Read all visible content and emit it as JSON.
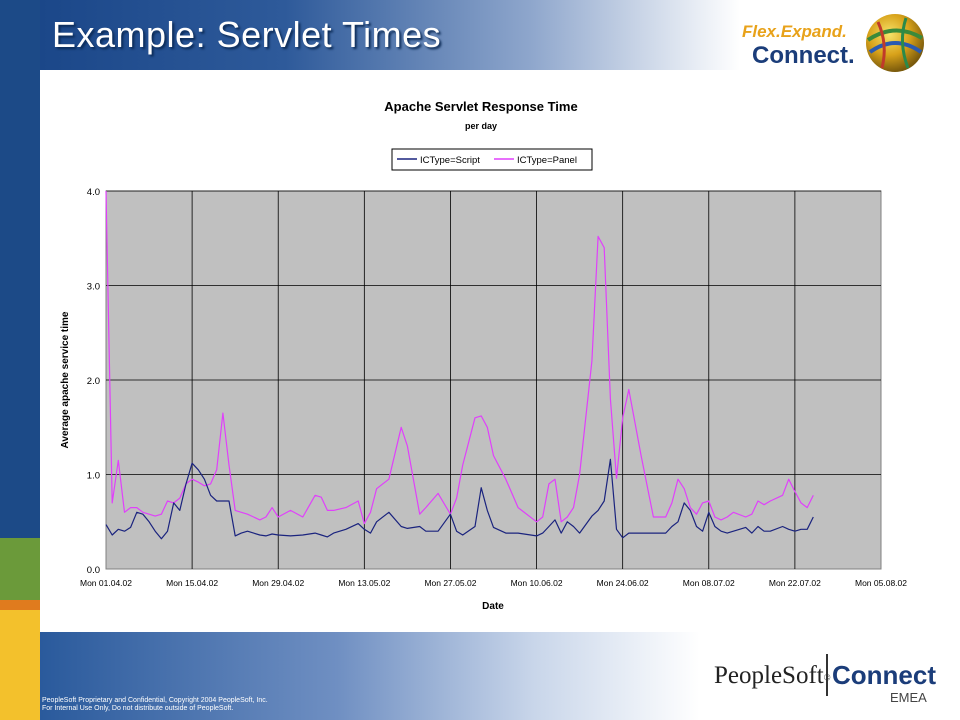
{
  "slide": {
    "title": "Example: Servlet Times",
    "logo_top_line1": "Flex.Expand.",
    "logo_top_line2": "Connect.",
    "footer_line1": "PeopleSoft Proprietary and Confidential, Copyright 2004 PeopleSoft, Inc.",
    "footer_line2": "For Internal Use Only, Do not distribute outside of PeopleSoft.",
    "footer_logo_brand": "PeopleSoft",
    "footer_logo_reg": "®",
    "footer_logo_product": "Connect",
    "footer_logo_region": "EMEA"
  },
  "colors": {
    "script_series": "#1a237e",
    "panel_series": "#e040fb",
    "plot_background": "#c0c0c0",
    "brand_blue": "#1c4a87"
  },
  "chart_data": {
    "type": "line",
    "title": "Apache Servlet Response Time",
    "subtitle": "per day",
    "xlabel": "Date",
    "ylabel": "Average apache service time",
    "ylim": [
      0,
      4
    ],
    "yticks": [
      "0.0",
      "1.0",
      "2.0",
      "3.0",
      "4.0"
    ],
    "xticks": [
      "Mon 01.04.02",
      "Mon 15.04.02",
      "Mon 29.04.02",
      "Mon 13.05.02",
      "Mon 27.05.02",
      "Mon 10.06.02",
      "Mon 24.06.02",
      "Mon 08.07.02",
      "Mon 22.07.02",
      "Mon 05.08.02"
    ],
    "xrange": [
      "2002-04-01",
      "2002-08-05"
    ],
    "grid": true,
    "legend_position": "top-center",
    "series": [
      {
        "name": "ICType=Script",
        "points": [
          [
            "2002-04-01",
            0.47
          ],
          [
            "2002-04-02",
            0.36
          ],
          [
            "2002-04-03",
            0.42
          ],
          [
            "2002-04-04",
            0.4
          ],
          [
            "2002-04-05",
            0.44
          ],
          [
            "2002-04-06",
            0.6
          ],
          [
            "2002-04-07",
            0.58
          ],
          [
            "2002-04-08",
            0.5
          ],
          [
            "2002-04-09",
            0.4
          ],
          [
            "2002-04-10",
            0.32
          ],
          [
            "2002-04-11",
            0.4
          ],
          [
            "2002-04-12",
            0.7
          ],
          [
            "2002-04-13",
            0.62
          ],
          [
            "2002-04-14",
            0.9
          ],
          [
            "2002-04-15",
            1.12
          ],
          [
            "2002-04-16",
            1.05
          ],
          [
            "2002-04-17",
            0.95
          ],
          [
            "2002-04-18",
            0.78
          ],
          [
            "2002-04-19",
            0.72
          ],
          [
            "2002-04-20",
            0.72
          ],
          [
            "2002-04-21",
            0.72
          ],
          [
            "2002-04-22",
            0.35
          ],
          [
            "2002-04-23",
            0.38
          ],
          [
            "2002-04-24",
            0.4
          ],
          [
            "2002-04-25",
            0.38
          ],
          [
            "2002-04-26",
            0.36
          ],
          [
            "2002-04-27",
            0.35
          ],
          [
            "2002-04-28",
            0.37
          ],
          [
            "2002-04-29",
            0.36
          ],
          [
            "2002-05-01",
            0.35
          ],
          [
            "2002-05-03",
            0.36
          ],
          [
            "2002-05-05",
            0.38
          ],
          [
            "2002-05-06",
            0.36
          ],
          [
            "2002-05-07",
            0.34
          ],
          [
            "2002-05-08",
            0.38
          ],
          [
            "2002-05-10",
            0.42
          ],
          [
            "2002-05-12",
            0.48
          ],
          [
            "2002-05-13",
            0.42
          ],
          [
            "2002-05-14",
            0.38
          ],
          [
            "2002-05-15",
            0.5
          ],
          [
            "2002-05-17",
            0.6
          ],
          [
            "2002-05-19",
            0.45
          ],
          [
            "2002-05-20",
            0.43
          ],
          [
            "2002-05-22",
            0.45
          ],
          [
            "2002-05-23",
            0.4
          ],
          [
            "2002-05-25",
            0.4
          ],
          [
            "2002-05-27",
            0.58
          ],
          [
            "2002-05-28",
            0.4
          ],
          [
            "2002-05-29",
            0.36
          ],
          [
            "2002-05-31",
            0.45
          ],
          [
            "2002-06-01",
            0.86
          ],
          [
            "2002-06-02",
            0.62
          ],
          [
            "2002-06-03",
            0.44
          ],
          [
            "2002-06-05",
            0.38
          ],
          [
            "2002-06-07",
            0.38
          ],
          [
            "2002-06-10",
            0.35
          ],
          [
            "2002-06-11",
            0.38
          ],
          [
            "2002-06-12",
            0.45
          ],
          [
            "2002-06-13",
            0.52
          ],
          [
            "2002-06-14",
            0.38
          ],
          [
            "2002-06-15",
            0.5
          ],
          [
            "2002-06-16",
            0.45
          ],
          [
            "2002-06-17",
            0.38
          ],
          [
            "2002-06-19",
            0.56
          ],
          [
            "2002-06-20",
            0.62
          ],
          [
            "2002-06-21",
            0.72
          ],
          [
            "2002-06-22",
            1.16
          ],
          [
            "2002-06-23",
            0.42
          ],
          [
            "2002-06-24",
            0.33
          ],
          [
            "2002-06-25",
            0.38
          ],
          [
            "2002-06-27",
            0.38
          ],
          [
            "2002-06-29",
            0.38
          ],
          [
            "2002-07-01",
            0.38
          ],
          [
            "2002-07-02",
            0.45
          ],
          [
            "2002-07-03",
            0.5
          ],
          [
            "2002-07-04",
            0.7
          ],
          [
            "2002-07-05",
            0.62
          ],
          [
            "2002-07-06",
            0.45
          ],
          [
            "2002-07-07",
            0.4
          ],
          [
            "2002-07-08",
            0.6
          ],
          [
            "2002-07-09",
            0.45
          ],
          [
            "2002-07-10",
            0.4
          ],
          [
            "2002-07-11",
            0.38
          ],
          [
            "2002-07-12",
            0.4
          ],
          [
            "2002-07-14",
            0.44
          ],
          [
            "2002-07-15",
            0.38
          ],
          [
            "2002-07-16",
            0.45
          ],
          [
            "2002-07-17",
            0.4
          ],
          [
            "2002-07-18",
            0.4
          ],
          [
            "2002-07-20",
            0.45
          ],
          [
            "2002-07-21",
            0.42
          ],
          [
            "2002-07-22",
            0.4
          ],
          [
            "2002-07-23",
            0.42
          ],
          [
            "2002-07-24",
            0.42
          ],
          [
            "2002-07-25",
            0.55
          ]
        ]
      },
      {
        "name": "ICType=Panel",
        "points": [
          [
            "2002-04-01",
            4.2
          ],
          [
            "2002-04-02",
            0.7
          ],
          [
            "2002-04-03",
            1.15
          ],
          [
            "2002-04-04",
            0.6
          ],
          [
            "2002-04-05",
            0.65
          ],
          [
            "2002-04-06",
            0.65
          ],
          [
            "2002-04-07",
            0.6
          ],
          [
            "2002-04-08",
            0.58
          ],
          [
            "2002-04-09",
            0.56
          ],
          [
            "2002-04-10",
            0.58
          ],
          [
            "2002-04-11",
            0.72
          ],
          [
            "2002-04-12",
            0.7
          ],
          [
            "2002-04-13",
            0.75
          ],
          [
            "2002-04-14",
            0.9
          ],
          [
            "2002-04-15",
            0.95
          ],
          [
            "2002-04-16",
            0.92
          ],
          [
            "2002-04-17",
            0.88
          ],
          [
            "2002-04-18",
            0.9
          ],
          [
            "2002-04-19",
            1.05
          ],
          [
            "2002-04-20",
            1.65
          ],
          [
            "2002-04-21",
            1.1
          ],
          [
            "2002-04-22",
            0.62
          ],
          [
            "2002-04-23",
            0.6
          ],
          [
            "2002-04-24",
            0.58
          ],
          [
            "2002-04-25",
            0.55
          ],
          [
            "2002-04-26",
            0.52
          ],
          [
            "2002-04-27",
            0.55
          ],
          [
            "2002-04-28",
            0.65
          ],
          [
            "2002-04-29",
            0.55
          ],
          [
            "2002-05-01",
            0.62
          ],
          [
            "2002-05-03",
            0.55
          ],
          [
            "2002-05-05",
            0.78
          ],
          [
            "2002-05-06",
            0.76
          ],
          [
            "2002-05-07",
            0.62
          ],
          [
            "2002-05-08",
            0.62
          ],
          [
            "2002-05-10",
            0.65
          ],
          [
            "2002-05-12",
            0.72
          ],
          [
            "2002-05-13",
            0.48
          ],
          [
            "2002-05-14",
            0.6
          ],
          [
            "2002-05-15",
            0.85
          ],
          [
            "2002-05-17",
            0.95
          ],
          [
            "2002-05-19",
            1.5
          ],
          [
            "2002-05-20",
            1.3
          ],
          [
            "2002-05-22",
            0.58
          ],
          [
            "2002-05-23",
            0.65
          ],
          [
            "2002-05-25",
            0.8
          ],
          [
            "2002-05-27",
            0.58
          ],
          [
            "2002-05-28",
            0.75
          ],
          [
            "2002-05-29",
            1.1
          ],
          [
            "2002-05-31",
            1.6
          ],
          [
            "2002-06-01",
            1.62
          ],
          [
            "2002-06-02",
            1.5
          ],
          [
            "2002-06-03",
            1.2
          ],
          [
            "2002-06-05",
            0.95
          ],
          [
            "2002-06-07",
            0.65
          ],
          [
            "2002-06-10",
            0.5
          ],
          [
            "2002-06-11",
            0.55
          ],
          [
            "2002-06-12",
            0.9
          ],
          [
            "2002-06-13",
            0.95
          ],
          [
            "2002-06-14",
            0.5
          ],
          [
            "2002-06-15",
            0.55
          ],
          [
            "2002-06-16",
            0.65
          ],
          [
            "2002-06-17",
            1.0
          ],
          [
            "2002-06-19",
            2.2
          ],
          [
            "2002-06-20",
            3.52
          ],
          [
            "2002-06-21",
            3.4
          ],
          [
            "2002-06-22",
            1.8
          ],
          [
            "2002-06-23",
            0.96
          ],
          [
            "2002-06-24",
            1.6
          ],
          [
            "2002-06-25",
            1.9
          ],
          [
            "2002-06-27",
            1.2
          ],
          [
            "2002-06-29",
            0.55
          ],
          [
            "2002-07-01",
            0.55
          ],
          [
            "2002-07-02",
            0.7
          ],
          [
            "2002-07-03",
            0.95
          ],
          [
            "2002-07-04",
            0.85
          ],
          [
            "2002-07-05",
            0.65
          ],
          [
            "2002-07-06",
            0.58
          ],
          [
            "2002-07-07",
            0.7
          ],
          [
            "2002-07-08",
            0.72
          ],
          [
            "2002-07-09",
            0.55
          ],
          [
            "2002-07-10",
            0.52
          ],
          [
            "2002-07-11",
            0.55
          ],
          [
            "2002-07-12",
            0.6
          ],
          [
            "2002-07-14",
            0.55
          ],
          [
            "2002-07-15",
            0.58
          ],
          [
            "2002-07-16",
            0.72
          ],
          [
            "2002-07-17",
            0.68
          ],
          [
            "2002-07-18",
            0.72
          ],
          [
            "2002-07-20",
            0.78
          ],
          [
            "2002-07-21",
            0.95
          ],
          [
            "2002-07-22",
            0.82
          ],
          [
            "2002-07-23",
            0.7
          ],
          [
            "2002-07-24",
            0.65
          ],
          [
            "2002-07-25",
            0.78
          ]
        ]
      }
    ]
  }
}
